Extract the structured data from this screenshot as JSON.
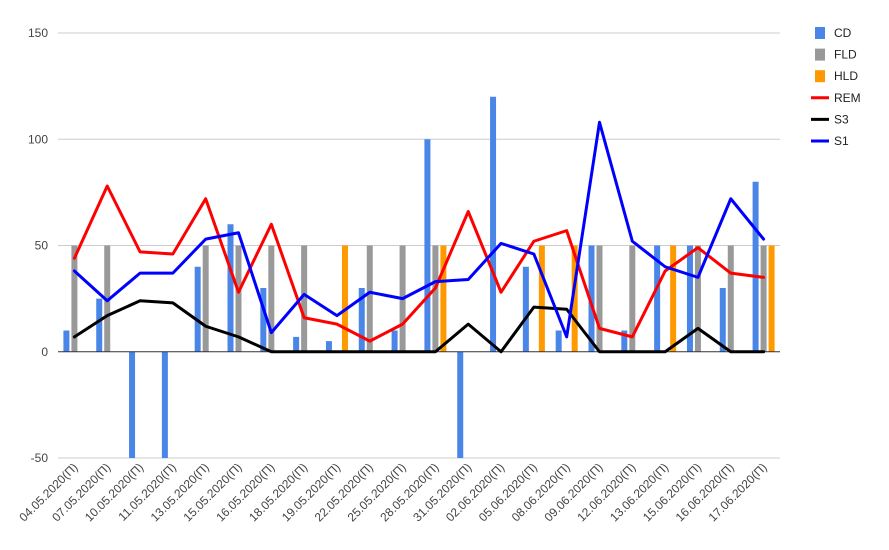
{
  "chart_data": {
    "type": "bar",
    "categories": [
      "04.05.2020(П)",
      "07.05.2020(П)",
      "10.05.2020(П)",
      "11.05.2020(П)",
      "13.05.2020(П)",
      "15.05.2020(П)",
      "16.05.2020(П)",
      "18.05.2020(П)",
      "19.05.2020(П)",
      "22.05.2020(П)",
      "25.05.2020(П)",
      "28.05.2020(П)",
      "31.05.2020(П)",
      "02.06.2020(П)",
      "05.06.2020(П)",
      "08.06.2020(П)",
      "09.06.2020(П)",
      "12.06.2020(П)",
      "13.06.2020(П)",
      "15.06.2020(П)",
      "16.06.2020(П)",
      "17.06.2020(П)"
    ],
    "ylim": [
      -50,
      150
    ],
    "yticks": [
      -50,
      0,
      50,
      100,
      150
    ],
    "ytick_labels": [
      "-50",
      "0",
      "50",
      "100",
      "150"
    ],
    "grid": true,
    "legend_position": "right",
    "bar_series": [
      {
        "name": "CD",
        "color": "#4a86e8",
        "values": [
          10,
          25,
          -50,
          -50,
          40,
          60,
          30,
          7,
          5,
          30,
          10,
          100,
          -50,
          120,
          40,
          10,
          50,
          10,
          50,
          50,
          30,
          80
        ]
      },
      {
        "name": "FLD",
        "color": "#999999",
        "values": [
          50,
          50,
          0,
          0,
          50,
          50,
          50,
          50,
          0,
          50,
          50,
          50,
          0,
          0,
          0,
          0,
          50,
          50,
          0,
          50,
          50,
          50
        ]
      },
      {
        "name": "HLD",
        "color": "#ff9900",
        "values": [
          0,
          0,
          0,
          0,
          0,
          0,
          0,
          0,
          50,
          0,
          0,
          50,
          0,
          0,
          50,
          50,
          0,
          0,
          50,
          0,
          0,
          50
        ]
      }
    ],
    "line_series": [
      {
        "name": "REM",
        "color": "#ff0000",
        "values": [
          44,
          78,
          47,
          46,
          72,
          28,
          60,
          16,
          13,
          5,
          13,
          30,
          66,
          28,
          52,
          57,
          11,
          7,
          38,
          49,
          37,
          35
        ]
      },
      {
        "name": "S3",
        "color": "#000000",
        "values": [
          7,
          17,
          24,
          23,
          12,
          7,
          0,
          0,
          0,
          0,
          0,
          0,
          13,
          0,
          21,
          20,
          0,
          0,
          0,
          11,
          0,
          0
        ]
      },
      {
        "name": "S1",
        "color": "#0000ff",
        "values": [
          38,
          24,
          37,
          37,
          53,
          56,
          9,
          27,
          17,
          28,
          25,
          33,
          34,
          51,
          46,
          7,
          108,
          52,
          40,
          35,
          72,
          53
        ]
      }
    ]
  }
}
